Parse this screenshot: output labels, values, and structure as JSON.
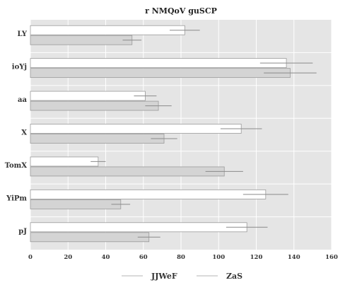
{
  "chart_data": {
    "type": "bar",
    "orientation": "horizontal",
    "title": "r NMQoV guSCP",
    "xlabel": "",
    "ylabel": "",
    "xlim": [
      0,
      160
    ],
    "xticks": [
      0,
      20,
      40,
      60,
      80,
      100,
      120,
      140,
      160
    ],
    "grid": true,
    "legend_position": "bottom",
    "categories": [
      "LY",
      "ioYj",
      "aa",
      "X",
      "TomX",
      "YiPm",
      "pJ"
    ],
    "series": [
      {
        "name": "JJWeF",
        "color": "#ffffff",
        "values": [
          82,
          136,
          61,
          112,
          36,
          125,
          115
        ],
        "errors": [
          8,
          14,
          6,
          11,
          4,
          12,
          11
        ]
      },
      {
        "name": "ZaS",
        "color": "#d4d4d4",
        "values": [
          54,
          138,
          68,
          71,
          103,
          48,
          63
        ],
        "errors": [
          5,
          14,
          7,
          7,
          10,
          5,
          6
        ]
      }
    ]
  }
}
